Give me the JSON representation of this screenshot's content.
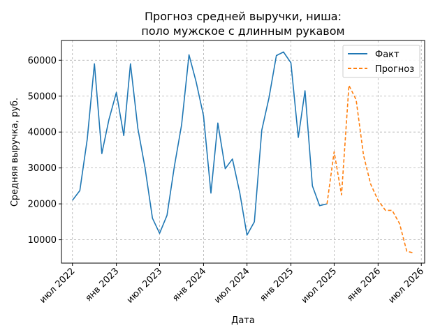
{
  "chart_data": {
    "type": "line",
    "title": [
      "Прогноз средней выручки, ниша:",
      "поло мужское с длинным рукавом"
    ],
    "xlabel": "Дата",
    "ylabel": "Средняя выручка, руб.",
    "ylim": [
      3500,
      65500
    ],
    "yticks": [
      10000,
      20000,
      30000,
      40000,
      50000,
      60000
    ],
    "xlim": [
      "2022-05-16",
      "2026-07-15"
    ],
    "xticks": [
      {
        "date": "2022-07-01",
        "label": "июл 2022"
      },
      {
        "date": "2023-01-01",
        "label": "янв 2023"
      },
      {
        "date": "2023-07-01",
        "label": "июл 2023"
      },
      {
        "date": "2024-01-01",
        "label": "янв 2024"
      },
      {
        "date": "2024-07-01",
        "label": "июл 2024"
      },
      {
        "date": "2025-01-01",
        "label": "янв 2025"
      },
      {
        "date": "2025-07-01",
        "label": "июл 2025"
      },
      {
        "date": "2026-01-01",
        "label": "янв 2026"
      },
      {
        "date": "2026-07-01",
        "label": "июл 2026"
      }
    ],
    "grid": true,
    "legend_position": "top-right",
    "series": [
      {
        "name": "Факт",
        "color": "#1f77b4",
        "style": "solid",
        "points": [
          [
            "2022-07-01",
            21000
          ],
          [
            "2022-08-01",
            23700
          ],
          [
            "2022-09-01",
            38000
          ],
          [
            "2022-10-01",
            59000
          ],
          [
            "2022-11-01",
            34000
          ],
          [
            "2022-12-01",
            43500
          ],
          [
            "2023-01-01",
            51000
          ],
          [
            "2023-02-01",
            39000
          ],
          [
            "2023-03-01",
            59000
          ],
          [
            "2023-04-01",
            41000
          ],
          [
            "2023-05-01",
            30000
          ],
          [
            "2023-06-01",
            16000
          ],
          [
            "2023-07-01",
            11800
          ],
          [
            "2023-08-01",
            16800
          ],
          [
            "2023-09-01",
            30500
          ],
          [
            "2023-10-01",
            42000
          ],
          [
            "2023-11-01",
            61500
          ],
          [
            "2023-12-01",
            54000
          ],
          [
            "2024-01-01",
            44500
          ],
          [
            "2024-02-01",
            23000
          ],
          [
            "2024-03-01",
            42500
          ],
          [
            "2024-04-01",
            29800
          ],
          [
            "2024-05-01",
            32500
          ],
          [
            "2024-06-01",
            23000
          ],
          [
            "2024-07-01",
            11300
          ],
          [
            "2024-08-01",
            15000
          ],
          [
            "2024-09-01",
            40500
          ],
          [
            "2024-10-01",
            49500
          ],
          [
            "2024-11-01",
            61300
          ],
          [
            "2024-12-01",
            62300
          ],
          [
            "2025-01-01",
            59300
          ],
          [
            "2025-02-01",
            38500
          ],
          [
            "2025-03-01",
            51500
          ],
          [
            "2025-04-01",
            25000
          ],
          [
            "2025-05-01",
            19500
          ],
          [
            "2025-06-01",
            20000
          ]
        ]
      },
      {
        "name": "Прогноз",
        "color": "#ff7f0e",
        "style": "dashed",
        "points": [
          [
            "2025-06-01",
            20000
          ],
          [
            "2025-07-01",
            34500
          ],
          [
            "2025-08-01",
            22500
          ],
          [
            "2025-09-01",
            53000
          ],
          [
            "2025-10-01",
            49000
          ],
          [
            "2025-11-01",
            33500
          ],
          [
            "2025-12-01",
            25500
          ],
          [
            "2026-01-01",
            21000
          ],
          [
            "2026-02-01",
            18200
          ],
          [
            "2026-03-01",
            18200
          ],
          [
            "2026-04-01",
            14500
          ],
          [
            "2026-05-01",
            6800
          ],
          [
            "2026-06-01",
            6300
          ]
        ]
      }
    ]
  }
}
